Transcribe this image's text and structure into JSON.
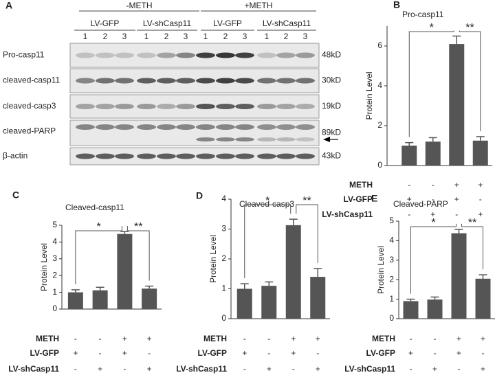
{
  "blot": {
    "panel": "A",
    "groups": [
      "-METH",
      "+METH"
    ],
    "treatments": [
      "LV-GFP",
      "LV-shCasp11",
      "LV-GFP",
      "LV-shCasp11"
    ],
    "lanes": [
      "1",
      "2",
      "3"
    ],
    "rows": [
      {
        "label": "Pro-casp11",
        "size": "48kD"
      },
      {
        "label": "cleaved-casp11",
        "size": "30kD"
      },
      {
        "label": "cleaved-casp3",
        "size": "19kD"
      },
      {
        "label": "cleaved-PARP",
        "size": "89kD"
      },
      {
        "label": "β-actin",
        "size": "43kD"
      }
    ]
  },
  "chart_data": [
    {
      "type": "bar",
      "panel": "B",
      "title": "Pro-casp11",
      "y_label": "Protein Level",
      "color": "#555555",
      "values": [
        1.0,
        1.2,
        6.1,
        1.25
      ],
      "errors": [
        0.15,
        0.2,
        0.4,
        0.2
      ],
      "ylim": [
        0,
        7
      ],
      "yticks": [
        0,
        2,
        4,
        6
      ],
      "annotations": [
        "*",
        "**"
      ],
      "conditions": [
        {
          "name": "METH",
          "values": [
            "-",
            "-",
            "+",
            "+"
          ]
        },
        {
          "name": "LV-GFP",
          "values": [
            "+",
            "-",
            "+",
            "-"
          ]
        },
        {
          "name": "LV-shCasp11",
          "values": [
            "-",
            "+",
            "-",
            "+"
          ]
        }
      ]
    },
    {
      "type": "bar",
      "panel": "C",
      "title": "Cleaved-casp11",
      "y_label": "Protein Level",
      "color": "#555555",
      "values": [
        1.0,
        1.12,
        4.48,
        1.22
      ],
      "errors": [
        0.15,
        0.18,
        0.15,
        0.15
      ],
      "ylim": [
        0,
        5
      ],
      "yticks": [
        0,
        1,
        2,
        3,
        4,
        5
      ],
      "annotations": [
        "*",
        "**"
      ],
      "conditions": [
        {
          "name": "METH",
          "values": [
            "-",
            "-",
            "+",
            "+"
          ]
        },
        {
          "name": "LV-GFP",
          "values": [
            "+",
            "-",
            "+",
            "-"
          ]
        },
        {
          "name": "LV-shCasp11",
          "values": [
            "-",
            "+",
            "-",
            "+"
          ]
        }
      ]
    },
    {
      "type": "bar",
      "panel": "D",
      "title": "Cleaved-casp3",
      "y_label": "Protein Level",
      "color": "#555555",
      "values": [
        1.0,
        1.1,
        3.13,
        1.4
      ],
      "errors": [
        0.17,
        0.13,
        0.2,
        0.28
      ],
      "ylim": [
        0,
        4
      ],
      "yticks": [
        0,
        1,
        2,
        3,
        4
      ],
      "annotations": [
        "*",
        "**"
      ],
      "conditions": [
        {
          "name": "METH",
          "values": [
            "-",
            "-",
            "+",
            "+"
          ]
        },
        {
          "name": "LV-GFP",
          "values": [
            "+",
            "-",
            "+",
            "-"
          ]
        },
        {
          "name": "LV-shCasp11",
          "values": [
            "-",
            "+",
            "-",
            "+"
          ]
        }
      ]
    },
    {
      "type": "bar",
      "panel": "E",
      "title": "Cleaved-PARP",
      "y_label": "Protein Level",
      "color": "#555555",
      "values": [
        0.9,
        0.98,
        4.38,
        2.05
      ],
      "errors": [
        0.1,
        0.13,
        0.2,
        0.2
      ],
      "ylim": [
        0,
        5
      ],
      "yticks": [
        0,
        1,
        2,
        3,
        4,
        5
      ],
      "annotations": [
        "*",
        "**"
      ],
      "conditions": [
        {
          "name": "METH",
          "values": [
            "-",
            "-",
            "+",
            "+"
          ]
        },
        {
          "name": "LV-GFP",
          "values": [
            "+",
            "-",
            "+",
            "-"
          ]
        },
        {
          "name": "LV-shCasp11",
          "values": [
            "-",
            "+",
            "-",
            "+"
          ]
        }
      ]
    }
  ]
}
